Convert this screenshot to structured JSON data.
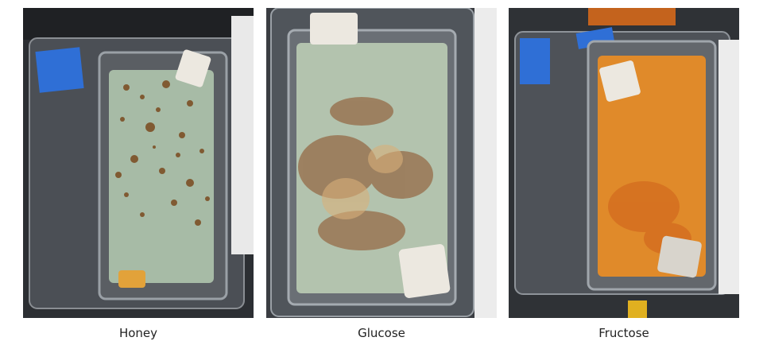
{
  "photos": [
    {
      "label": "Honey",
      "liquid_color": "#a7bba6",
      "spot_color": "#7a4a1e"
    },
    {
      "label": "Glucose",
      "liquid_color": "#b3c3ae",
      "spot_color": "#8a4a22"
    },
    {
      "label": "Fructose",
      "liquid_color": "#e08a2a",
      "spot_color": "#d2691e"
    }
  ]
}
